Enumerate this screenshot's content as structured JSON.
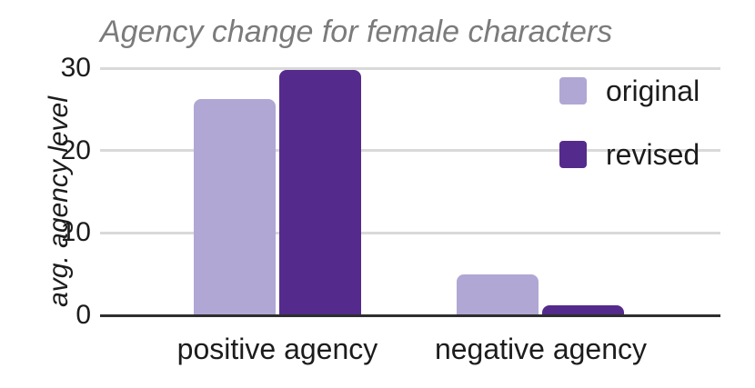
{
  "chart_data": {
    "type": "bar",
    "title": "Agency change for female characters",
    "xlabel": "",
    "ylabel": "avg. agency level",
    "categories": [
      "positive agency",
      "negative agency"
    ],
    "series": [
      {
        "name": "original",
        "color": "#b1a7d4",
        "values": [
          26.2,
          5.0
        ]
      },
      {
        "name": "revised",
        "color": "#542b8c",
        "values": [
          29.8,
          1.2
        ]
      }
    ],
    "ylim": [
      0,
      30
    ],
    "yticks": [
      0,
      10,
      20,
      30
    ],
    "grid": true,
    "legend_position": "top-right",
    "colors": {
      "title_text": "#7b7b7b",
      "axis_text": "#1c1c1c",
      "gridline": "#d9d9d9",
      "axis_line": "#2e2e2e",
      "background": "#ffffff"
    }
  }
}
